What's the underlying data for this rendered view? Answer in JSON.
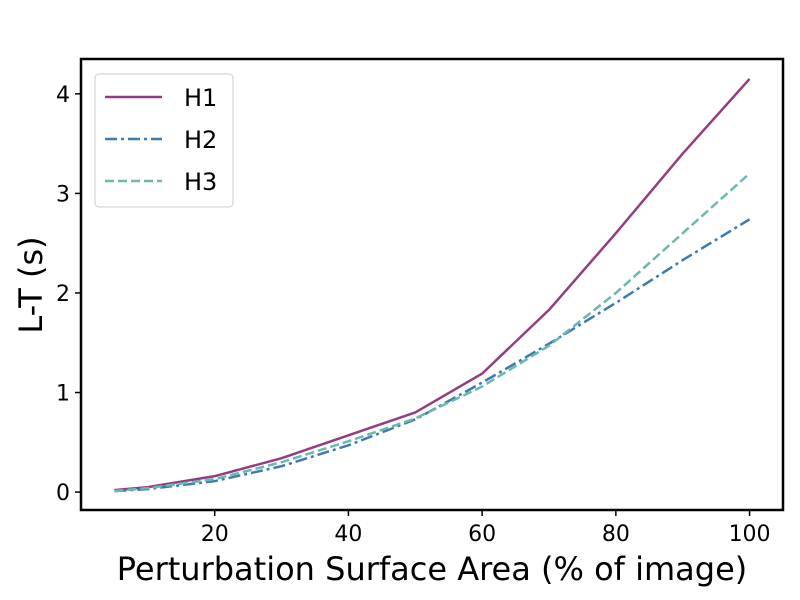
{
  "chart_data": {
    "type": "line",
    "title": "",
    "xlabel": "Perturbation Surface Area (% of image)",
    "ylabel": "L-T (s)",
    "xlim": [
      0,
      105
    ],
    "ylim": [
      -0.18,
      4.35
    ],
    "xticks": [
      20,
      40,
      60,
      80,
      100
    ],
    "yticks": [
      0,
      1,
      2,
      3,
      4
    ],
    "grid": false,
    "legend_position": "top-left",
    "x": [
      5,
      10,
      20,
      30,
      40,
      50,
      60,
      70,
      80,
      90,
      100
    ],
    "series": [
      {
        "name": "H1",
        "values": [
          0.02,
          0.05,
          0.16,
          0.34,
          0.57,
          0.8,
          1.19,
          1.83,
          2.6,
          3.4,
          4.15
        ],
        "color": "#933d7f",
        "dash": "solid"
      },
      {
        "name": "H2",
        "values": [
          0.01,
          0.03,
          0.11,
          0.26,
          0.47,
          0.73,
          1.1,
          1.49,
          1.9,
          2.33,
          2.74
        ],
        "color": "#3b7bb0",
        "dash": "dashdot"
      },
      {
        "name": "H3",
        "values": [
          0.01,
          0.04,
          0.13,
          0.3,
          0.51,
          0.74,
          1.06,
          1.47,
          2.0,
          2.6,
          3.2
        ],
        "color": "#6ab8b0",
        "dash": "dashed"
      }
    ]
  }
}
